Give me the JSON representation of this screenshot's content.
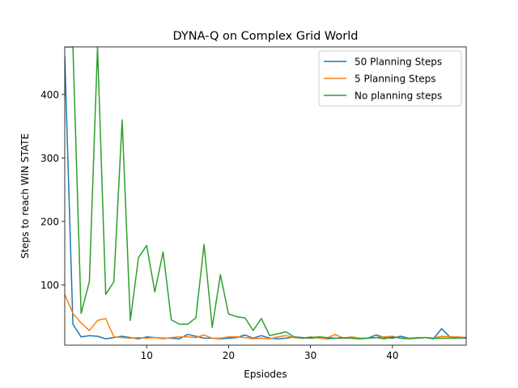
{
  "chart_data": {
    "type": "line",
    "title": "DYNA-Q on Complex Grid World",
    "xlabel": "Epsiodes",
    "ylabel": "Steps to reach WIN STATE",
    "xlim": [
      0,
      49
    ],
    "ylim": [
      5,
      475
    ],
    "xticks": [
      10,
      20,
      30,
      40
    ],
    "yticks": [
      100,
      200,
      300,
      400
    ],
    "grid": false,
    "legend_position": "top-right",
    "x": [
      0,
      1,
      2,
      3,
      4,
      5,
      6,
      7,
      8,
      9,
      10,
      11,
      12,
      13,
      14,
      15,
      16,
      17,
      18,
      19,
      20,
      21,
      22,
      23,
      24,
      25,
      26,
      27,
      28,
      29,
      30,
      31,
      32,
      33,
      34,
      35,
      36,
      37,
      38,
      39,
      40,
      41,
      42,
      43,
      44,
      45,
      46,
      47,
      48,
      49
    ],
    "series": [
      {
        "name": "50 Planning Steps",
        "color": "#1f77b4",
        "values": [
          460,
          38,
          18,
          20,
          19,
          15,
          17,
          19,
          17,
          15,
          18,
          17,
          16,
          16,
          15,
          22,
          19,
          16,
          16,
          15,
          16,
          17,
          21,
          16,
          20,
          16,
          15,
          16,
          18,
          17,
          16,
          17,
          15,
          16,
          16,
          16,
          15,
          16,
          21,
          17,
          16,
          19,
          16,
          16,
          17,
          15,
          31,
          18,
          17,
          16
        ]
      },
      {
        "name": "5 Planning Steps",
        "color": "#ff7f0e",
        "values": [
          85,
          55,
          40,
          28,
          44,
          47,
          18,
          17,
          16,
          17,
          16,
          17,
          15,
          17,
          18,
          18,
          17,
          21,
          16,
          16,
          18,
          18,
          17,
          15,
          16,
          15,
          18,
          20,
          17,
          16,
          18,
          16,
          16,
          22,
          16,
          18,
          16,
          16,
          17,
          18,
          19,
          16,
          16,
          17,
          17,
          16,
          19,
          18,
          18,
          17
        ]
      },
      {
        "name": "No planning steps",
        "color": "#2ca02c",
        "values": [
          475,
          475,
          55,
          105,
          475,
          85,
          105,
          360,
          44,
          143,
          162,
          89,
          152,
          45,
          38,
          38,
          48,
          164,
          33,
          116,
          54,
          50,
          48,
          28,
          47,
          20,
          23,
          26,
          18,
          16,
          17,
          18,
          17,
          16,
          17,
          16,
          15,
          16,
          17,
          15,
          18,
          16,
          15,
          16,
          17,
          16,
          16,
          16,
          16,
          17
        ]
      }
    ]
  }
}
